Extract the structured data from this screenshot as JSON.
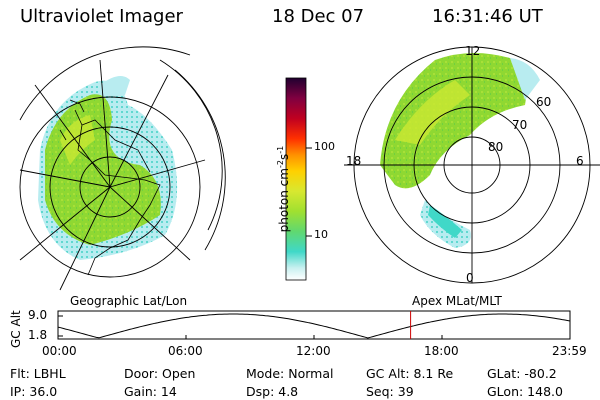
{
  "header": {
    "title": "Ultraviolet Imager",
    "date": "18 Dec 07",
    "time": "16:31:46 UT"
  },
  "colorbar": {
    "label": "photon cm",
    "label_sup1": "-2",
    "label_s": "s",
    "label_sup2": "-1",
    "ticks": [
      "100",
      "10"
    ]
  },
  "left_map": {
    "caption": "Geographic Lat/Lon"
  },
  "right_map": {
    "caption": "Apex MLat/MLT",
    "mlt_labels": {
      "top": "12",
      "left": "18",
      "right": "6",
      "bottom": "0"
    },
    "lat_labels": [
      "60",
      "70",
      "80"
    ]
  },
  "gc_plot": {
    "ylabel": "GC Alt",
    "yticks": [
      "9.0",
      "1.8"
    ],
    "xticks": [
      "00:00",
      "06:00",
      "12:00",
      "18:00",
      "23:59"
    ],
    "marker_time": "16:31",
    "colors": {
      "curve": "#000000",
      "marker": "#cc0000"
    }
  },
  "info": {
    "row1": [
      {
        "label": "Flt:",
        "value": "LBHL"
      },
      {
        "label": "Door:",
        "value": "Open"
      },
      {
        "label": "Mode:",
        "value": "Normal"
      },
      {
        "label": "GC Alt:",
        "value": "8.1 Re"
      },
      {
        "label": "GLat:",
        "value": "-80.2"
      }
    ],
    "row2": [
      {
        "label": "IP:",
        "value": "36.0"
      },
      {
        "label": "Gain:",
        "value": "14"
      },
      {
        "label": "Dsp:",
        "value": "4.8"
      },
      {
        "label": "Seq:",
        "value": "39"
      },
      {
        "label": "GLon:",
        "value": "148.0"
      }
    ]
  },
  "colors": {
    "green": "#8fd832",
    "yellow_green": "#c8e832",
    "cyan": "#40d8c8",
    "light_cyan": "#b8ecf0"
  }
}
